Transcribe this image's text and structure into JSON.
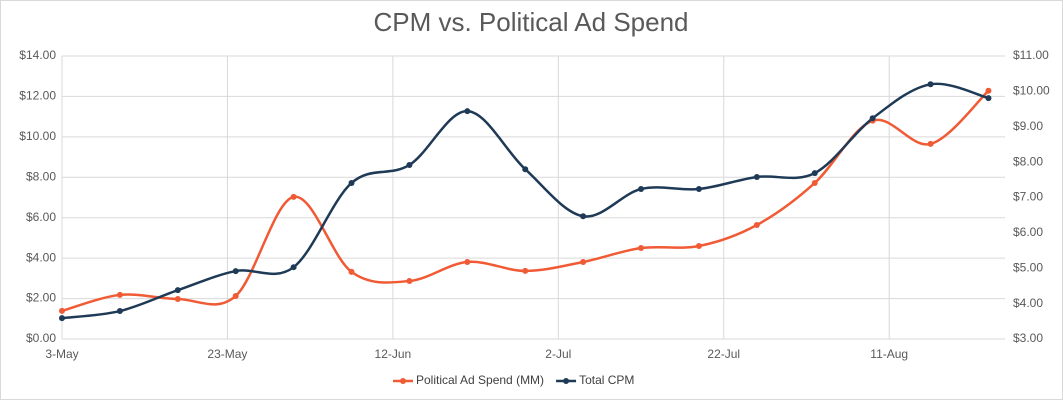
{
  "chart_data": {
    "type": "line",
    "title": "CPM vs. Political Ad Spend",
    "x": [
      "3-May",
      "10-May",
      "17-May",
      "24-May",
      "31-May",
      "7-Jun",
      "14-Jun",
      "21-Jun",
      "28-Jun",
      "5-Jul",
      "12-Jul",
      "19-Jul",
      "26-Jul",
      "2-Aug",
      "9-Aug",
      "16-Aug",
      "23-Aug"
    ],
    "xlim": [
      "3-May",
      "25-Aug"
    ],
    "xticks": [
      "3-May",
      "23-May",
      "12-Jun",
      "2-Jul",
      "22-Jul",
      "11-Aug"
    ],
    "ylim": [
      0,
      14
    ],
    "yticks": [
      {
        "value": 0,
        "label": "$0.00"
      },
      {
        "value": 2,
        "label": "$2.00"
      },
      {
        "value": 4,
        "label": "$4.00"
      },
      {
        "value": 6,
        "label": "$6.00"
      },
      {
        "value": 8,
        "label": "$8.00"
      },
      {
        "value": 10,
        "label": "$10.00"
      },
      {
        "value": 12,
        "label": "$12.00"
      },
      {
        "value": 14,
        "label": "$14.00"
      }
    ],
    "y2lim": [
      3,
      11
    ],
    "y2ticks": [
      {
        "value": 3,
        "label": "$3.00"
      },
      {
        "value": 4,
        "label": "$4.00"
      },
      {
        "value": 5,
        "label": "$5.00"
      },
      {
        "value": 6,
        "label": "$6.00"
      },
      {
        "value": 7,
        "label": "$7.00"
      },
      {
        "value": 8,
        "label": "$8.00"
      },
      {
        "value": 9,
        "label": "$9.00"
      },
      {
        "value": 10,
        "label": "$10.00"
      },
      {
        "value": 11,
        "label": "$11.00"
      }
    ],
    "grid": true,
    "smooth": true,
    "legend": "bottom",
    "series": [
      {
        "name": "Political Ad Spend (MM)",
        "color": "#f05a35",
        "axis": "y",
        "values": [
          1.39,
          2.18,
          1.98,
          2.13,
          7.03,
          3.32,
          2.87,
          3.81,
          3.37,
          3.81,
          4.5,
          4.6,
          5.64,
          7.72,
          10.8,
          9.65,
          12.28
        ]
      },
      {
        "name": "Total CPM",
        "color": "#1f3a56",
        "axis": "y2",
        "values": [
          3.59,
          3.79,
          4.38,
          4.92,
          5.03,
          7.41,
          7.92,
          9.44,
          7.8,
          6.47,
          7.24,
          7.24,
          7.58,
          7.69,
          9.24,
          10.2,
          9.81
        ]
      }
    ]
  }
}
